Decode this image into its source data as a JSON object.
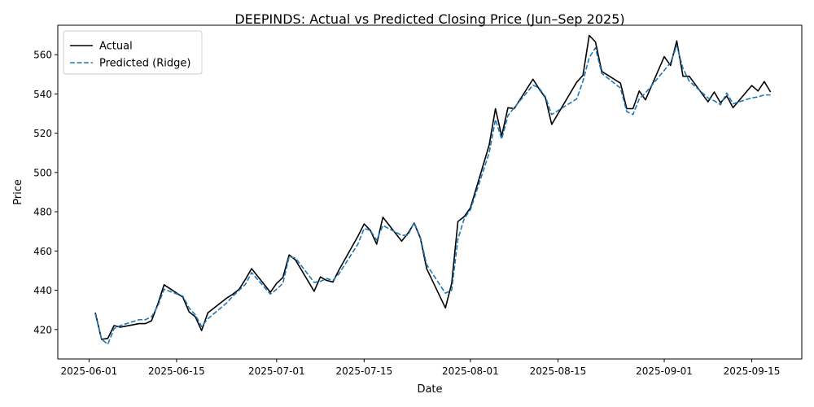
{
  "chart_data": {
    "type": "line",
    "title": "DEEPINDS: Actual vs Predicted Closing Price (Jun–Sep 2025)",
    "xlabel": "Date",
    "ylabel": "Price",
    "x_ticks": [
      "2025-06-01",
      "2025-06-15",
      "2025-07-01",
      "2025-07-15",
      "2025-08-01",
      "2025-08-15",
      "2025-09-01",
      "2025-09-15"
    ],
    "y_ticks": [
      420,
      440,
      460,
      480,
      500,
      520,
      540,
      560
    ],
    "xlim": [
      "2025-05-27",
      "2025-09-23"
    ],
    "ylim": [
      405,
      575
    ],
    "grid": false,
    "legend_position": "top-left",
    "series": [
      {
        "name": "Actual",
        "color": "#000000",
        "style": "solid",
        "points": [
          [
            "2025-06-02",
            428.6
          ],
          [
            "2025-06-03",
            415.0
          ],
          [
            "2025-06-04",
            415.5
          ],
          [
            "2025-06-05",
            422.0
          ],
          [
            "2025-06-06",
            421.2
          ],
          [
            "2025-06-09",
            423.0
          ],
          [
            "2025-06-10",
            423.0
          ],
          [
            "2025-06-11",
            424.5
          ],
          [
            "2025-06-12",
            433.0
          ],
          [
            "2025-06-13",
            442.8
          ],
          [
            "2025-06-16",
            436.5
          ],
          [
            "2025-06-17",
            429.0
          ],
          [
            "2025-06-18",
            426.5
          ],
          [
            "2025-06-19",
            419.5
          ],
          [
            "2025-06-20",
            428.5
          ],
          [
            "2025-06-23",
            436.0
          ],
          [
            "2025-06-24",
            438.0
          ],
          [
            "2025-06-25",
            440.5
          ],
          [
            "2025-06-26",
            445.5
          ],
          [
            "2025-06-27",
            451.0
          ],
          [
            "2025-06-30",
            439.0
          ],
          [
            "2025-07-01",
            443.5
          ],
          [
            "2025-07-02",
            446.5
          ],
          [
            "2025-07-03",
            458.0
          ],
          [
            "2025-07-04",
            455.5
          ],
          [
            "2025-07-07",
            439.5
          ],
          [
            "2025-07-08",
            446.8
          ],
          [
            "2025-07-09",
            445.0
          ],
          [
            "2025-07-10",
            444.2
          ],
          [
            "2025-07-11",
            450.5
          ],
          [
            "2025-07-14",
            467.5
          ],
          [
            "2025-07-15",
            473.8
          ],
          [
            "2025-07-16",
            470.5
          ],
          [
            "2025-07-17",
            463.5
          ],
          [
            "2025-07-18",
            477.2
          ],
          [
            "2025-07-21",
            465.0
          ],
          [
            "2025-07-22",
            469.0
          ],
          [
            "2025-07-23",
            474.2
          ],
          [
            "2025-07-24",
            466.5
          ],
          [
            "2025-07-25",
            451.0
          ],
          [
            "2025-07-28",
            431.0
          ],
          [
            "2025-07-29",
            443.5
          ],
          [
            "2025-07-30",
            475.0
          ],
          [
            "2025-07-31",
            477.5
          ],
          [
            "2025-08-01",
            482.0
          ],
          [
            "2025-08-04",
            514.0
          ],
          [
            "2025-08-05",
            532.5
          ],
          [
            "2025-08-06",
            518.5
          ],
          [
            "2025-08-07",
            533.0
          ],
          [
            "2025-08-08",
            532.5
          ],
          [
            "2025-08-11",
            547.5
          ],
          [
            "2025-08-12",
            542.5
          ],
          [
            "2025-08-13",
            538.0
          ],
          [
            "2025-08-14",
            524.5
          ],
          [
            "2025-08-18",
            546.0
          ],
          [
            "2025-08-19",
            549.5
          ],
          [
            "2025-08-20",
            569.8
          ],
          [
            "2025-08-21",
            566.5
          ],
          [
            "2025-08-22",
            551.5
          ],
          [
            "2025-08-25",
            545.5
          ],
          [
            "2025-08-26",
            532.5
          ],
          [
            "2025-08-27",
            532.5
          ],
          [
            "2025-08-28",
            541.5
          ],
          [
            "2025-08-29",
            537.0
          ],
          [
            "2025-09-01",
            559.0
          ],
          [
            "2025-09-02",
            554.5
          ],
          [
            "2025-09-03",
            567.0
          ],
          [
            "2025-09-04",
            549.0
          ],
          [
            "2025-09-05",
            549.0
          ],
          [
            "2025-09-08",
            536.0
          ],
          [
            "2025-09-09",
            541.0
          ],
          [
            "2025-09-10",
            535.5
          ],
          [
            "2025-09-11",
            539.0
          ],
          [
            "2025-09-12",
            533.0
          ],
          [
            "2025-09-15",
            544.3
          ],
          [
            "2025-09-16",
            541.5
          ],
          [
            "2025-09-17",
            546.3
          ],
          [
            "2025-09-18",
            541.0
          ]
        ]
      },
      {
        "name": "Predicted (Ridge)",
        "color": "#1f77b4",
        "style": "dashed",
        "points": [
          [
            "2025-06-02",
            428.0
          ],
          [
            "2025-06-03",
            415.0
          ],
          [
            "2025-06-04",
            412.5
          ],
          [
            "2025-06-05",
            420.5
          ],
          [
            "2025-06-06",
            422.0
          ],
          [
            "2025-06-09",
            425.0
          ],
          [
            "2025-06-10",
            425.0
          ],
          [
            "2025-06-11",
            426.5
          ],
          [
            "2025-06-12",
            432.0
          ],
          [
            "2025-06-13",
            440.5
          ],
          [
            "2025-06-16",
            437.0
          ],
          [
            "2025-06-17",
            431.0
          ],
          [
            "2025-06-18",
            427.5
          ],
          [
            "2025-06-19",
            421.5
          ],
          [
            "2025-06-20",
            425.5
          ],
          [
            "2025-06-23",
            433.5
          ],
          [
            "2025-06-24",
            437.0
          ],
          [
            "2025-06-25",
            440.0
          ],
          [
            "2025-06-26",
            443.0
          ],
          [
            "2025-06-27",
            449.0
          ],
          [
            "2025-06-30",
            438.0
          ],
          [
            "2025-07-01",
            440.5
          ],
          [
            "2025-07-02",
            443.5
          ],
          [
            "2025-07-03",
            457.0
          ],
          [
            "2025-07-04",
            456.5
          ],
          [
            "2025-07-07",
            444.0
          ],
          [
            "2025-07-08",
            444.5
          ],
          [
            "2025-07-09",
            446.0
          ],
          [
            "2025-07-10",
            445.0
          ],
          [
            "2025-07-11",
            448.5
          ],
          [
            "2025-07-14",
            463.5
          ],
          [
            "2025-07-15",
            471.5
          ],
          [
            "2025-07-16",
            470.5
          ],
          [
            "2025-07-17",
            465.5
          ],
          [
            "2025-07-18",
            473.0
          ],
          [
            "2025-07-21",
            468.0
          ],
          [
            "2025-07-22",
            468.0
          ],
          [
            "2025-07-23",
            474.5
          ],
          [
            "2025-07-24",
            467.0
          ],
          [
            "2025-07-25",
            453.0
          ],
          [
            "2025-07-28",
            438.5
          ],
          [
            "2025-07-29",
            440.0
          ],
          [
            "2025-07-30",
            466.0
          ],
          [
            "2025-07-31",
            476.5
          ],
          [
            "2025-08-01",
            481.0
          ],
          [
            "2025-08-04",
            510.0
          ],
          [
            "2025-08-05",
            527.0
          ],
          [
            "2025-08-06",
            517.0
          ],
          [
            "2025-08-07",
            529.0
          ],
          [
            "2025-08-08",
            533.0
          ],
          [
            "2025-08-11",
            544.5
          ],
          [
            "2025-08-12",
            543.0
          ],
          [
            "2025-08-13",
            538.5
          ],
          [
            "2025-08-14",
            529.5
          ],
          [
            "2025-08-18",
            537.5
          ],
          [
            "2025-08-19",
            546.5
          ],
          [
            "2025-08-20",
            558.5
          ],
          [
            "2025-08-21",
            563.5
          ],
          [
            "2025-08-22",
            550.5
          ],
          [
            "2025-08-25",
            543.0
          ],
          [
            "2025-08-26",
            531.0
          ],
          [
            "2025-08-27",
            529.5
          ],
          [
            "2025-08-28",
            537.5
          ],
          [
            "2025-08-29",
            540.5
          ],
          [
            "2025-09-01",
            552.0
          ],
          [
            "2025-09-02",
            556.0
          ],
          [
            "2025-09-03",
            564.5
          ],
          [
            "2025-09-04",
            553.0
          ],
          [
            "2025-09-05",
            546.5
          ],
          [
            "2025-09-08",
            538.0
          ],
          [
            "2025-09-09",
            536.5
          ],
          [
            "2025-09-10",
            534.5
          ],
          [
            "2025-09-11",
            540.5
          ],
          [
            "2025-09-12",
            535.0
          ],
          [
            "2025-09-15",
            538.0
          ],
          [
            "2025-09-16",
            538.5
          ],
          [
            "2025-09-17",
            539.5
          ],
          [
            "2025-09-18",
            539.5
          ]
        ]
      }
    ]
  }
}
